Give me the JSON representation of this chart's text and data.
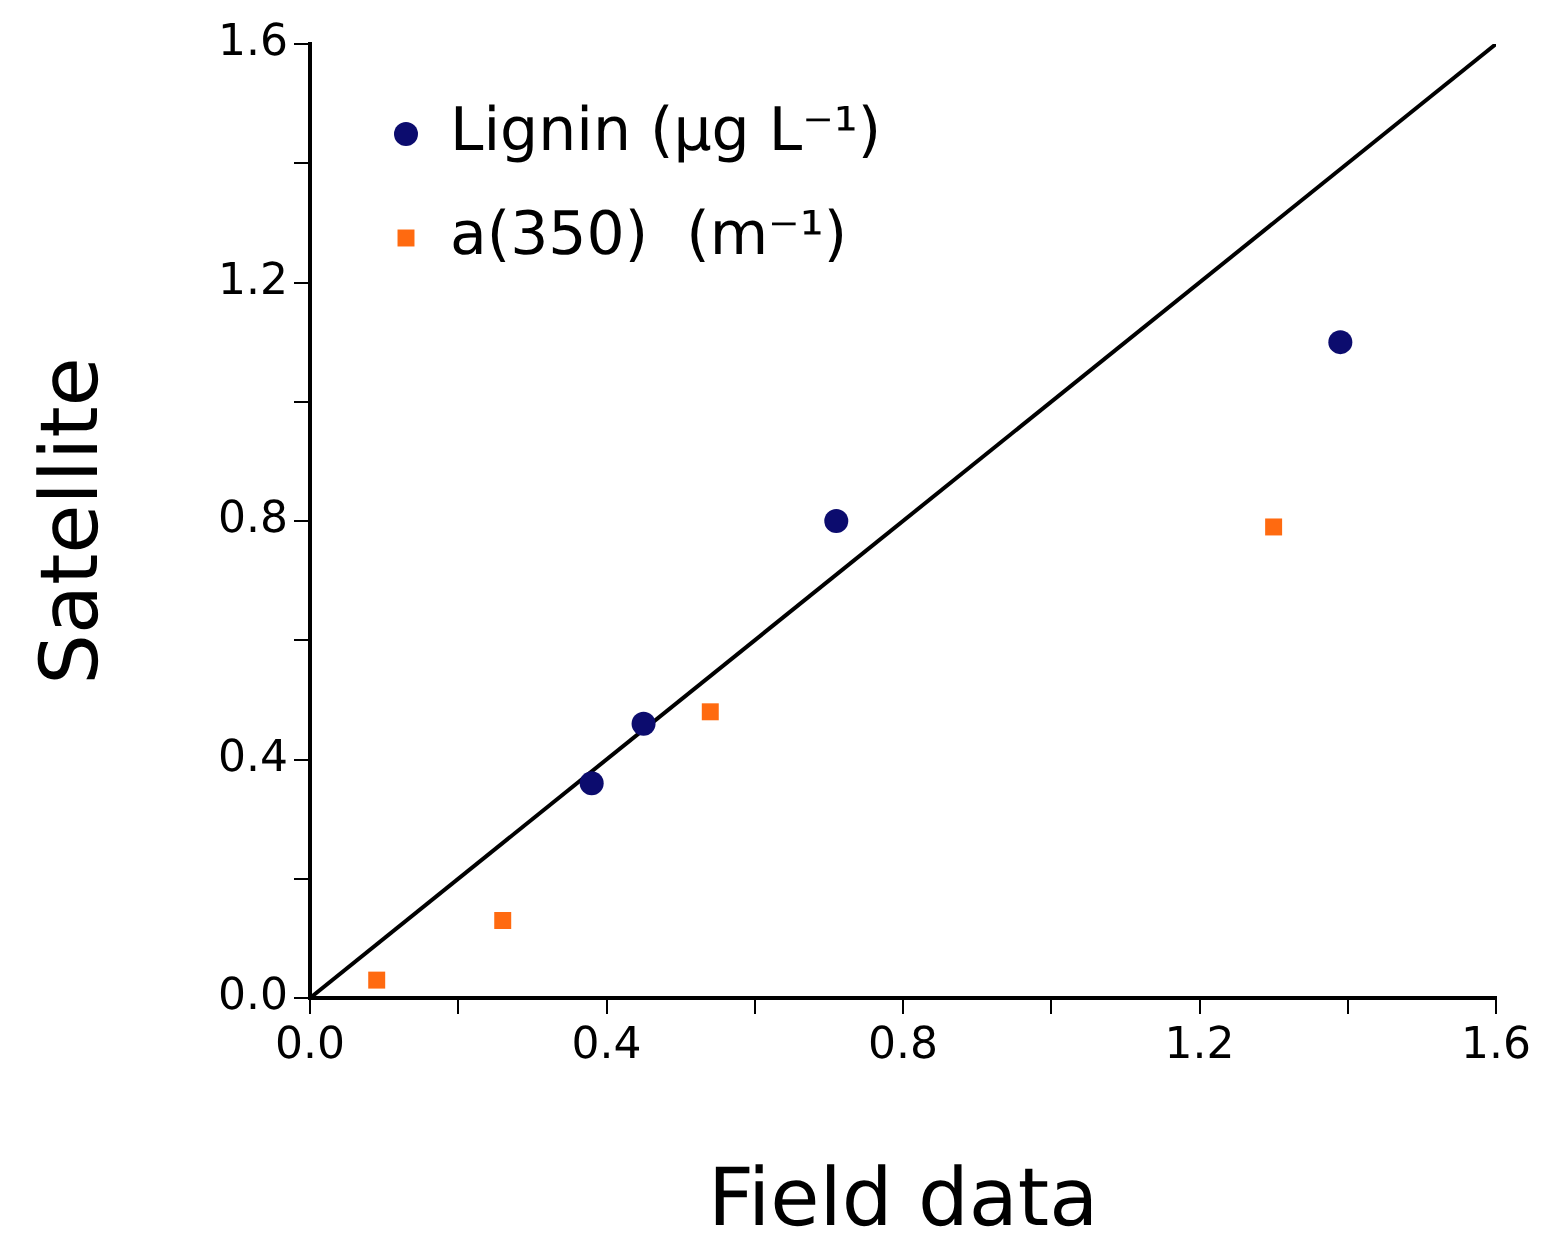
{
  "chart_data": {
    "type": "scatter",
    "xlabel": "Field data",
    "ylabel": "Satellite",
    "xlim": [
      0,
      1.6
    ],
    "ylim": [
      0,
      1.6
    ],
    "xticks": [
      {
        "value": 0,
        "label": "0.0"
      },
      {
        "value": 0.2,
        "label": null
      },
      {
        "value": 0.4,
        "label": "0.4"
      },
      {
        "value": 0.6,
        "label": null
      },
      {
        "value": 0.8,
        "label": "0.8"
      },
      {
        "value": 1.0,
        "label": null
      },
      {
        "value": 1.2,
        "label": "1.2"
      },
      {
        "value": 1.4,
        "label": null
      },
      {
        "value": 1.6,
        "label": "1.6"
      }
    ],
    "yticks": [
      {
        "value": 0,
        "label": "0.0"
      },
      {
        "value": 0.2,
        "label": null
      },
      {
        "value": 0.4,
        "label": "0.4"
      },
      {
        "value": 0.6,
        "label": null
      },
      {
        "value": 0.8,
        "label": "0.8"
      },
      {
        "value": 1.0,
        "label": null
      },
      {
        "value": 1.2,
        "label": "1.2"
      },
      {
        "value": 1.4,
        "label": null
      },
      {
        "value": 1.6,
        "label": "1.6"
      }
    ],
    "grid": false,
    "legend": "top left",
    "series": [
      {
        "name": "Lignin (µg L⁻¹)",
        "color": "#0c0c6e",
        "marker": "circle",
        "x": [
          0.38,
          0.45,
          0.71,
          1.39
        ],
        "values": [
          0.36,
          0.46,
          0.8,
          1.1
        ]
      },
      {
        "name": "a(350)  (m⁻¹)",
        "color": "#ff6a10",
        "marker": "square",
        "x": [
          0.09,
          0.26,
          0.54,
          1.3
        ],
        "values": [
          0.03,
          0.13,
          0.48,
          0.79
        ]
      },
      {
        "type": "line",
        "color": "#000000",
        "marker": "none",
        "x": [
          0,
          1.6
        ],
        "values": [
          0,
          1.6
        ]
      }
    ]
  }
}
